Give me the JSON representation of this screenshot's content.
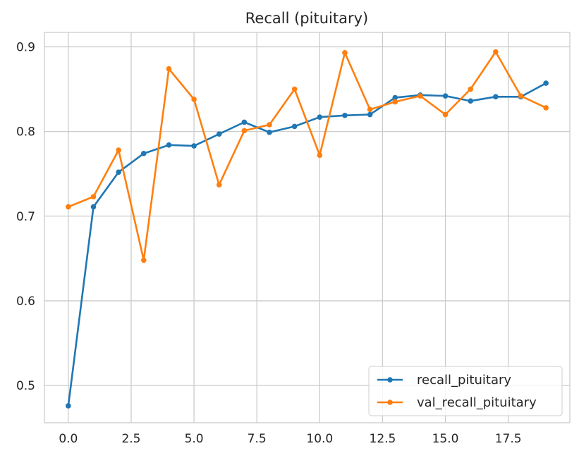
{
  "chart_data": {
    "type": "line",
    "title": "Recall (pituitary)",
    "xlabel": "",
    "ylabel": "",
    "xlim": [
      -0.95,
      19.95
    ],
    "ylim": [
      0.456,
      0.917
    ],
    "x_ticks": [
      0.0,
      2.5,
      5.0,
      7.5,
      10.0,
      12.5,
      15.0,
      17.5
    ],
    "x_tick_labels": [
      "0.0",
      "2.5",
      "5.0",
      "7.5",
      "10.0",
      "12.5",
      "15.0",
      "17.5"
    ],
    "y_ticks": [
      0.5,
      0.6,
      0.7,
      0.8,
      0.9
    ],
    "y_tick_labels": [
      "0.5",
      "0.6",
      "0.7",
      "0.8",
      "0.9"
    ],
    "grid": true,
    "legend_position": "lower-right",
    "x": [
      0,
      1,
      2,
      3,
      4,
      5,
      6,
      7,
      8,
      9,
      10,
      11,
      12,
      13,
      14,
      15,
      16,
      17,
      18,
      19
    ],
    "series": [
      {
        "name": "recall_pituitary",
        "color": "#1f77b4",
        "values": [
          0.476,
          0.711,
          0.752,
          0.774,
          0.784,
          0.783,
          0.797,
          0.811,
          0.799,
          0.806,
          0.817,
          0.819,
          0.82,
          0.84,
          0.843,
          0.842,
          0.836,
          0.841,
          0.841,
          0.857
        ]
      },
      {
        "name": "val_recall_pituitary",
        "color": "#ff7f0e",
        "values": [
          0.711,
          0.723,
          0.778,
          0.648,
          0.874,
          0.838,
          0.737,
          0.801,
          0.808,
          0.85,
          0.772,
          0.893,
          0.826,
          0.835,
          0.842,
          0.82,
          0.85,
          0.894,
          0.842,
          0.828
        ]
      }
    ]
  }
}
